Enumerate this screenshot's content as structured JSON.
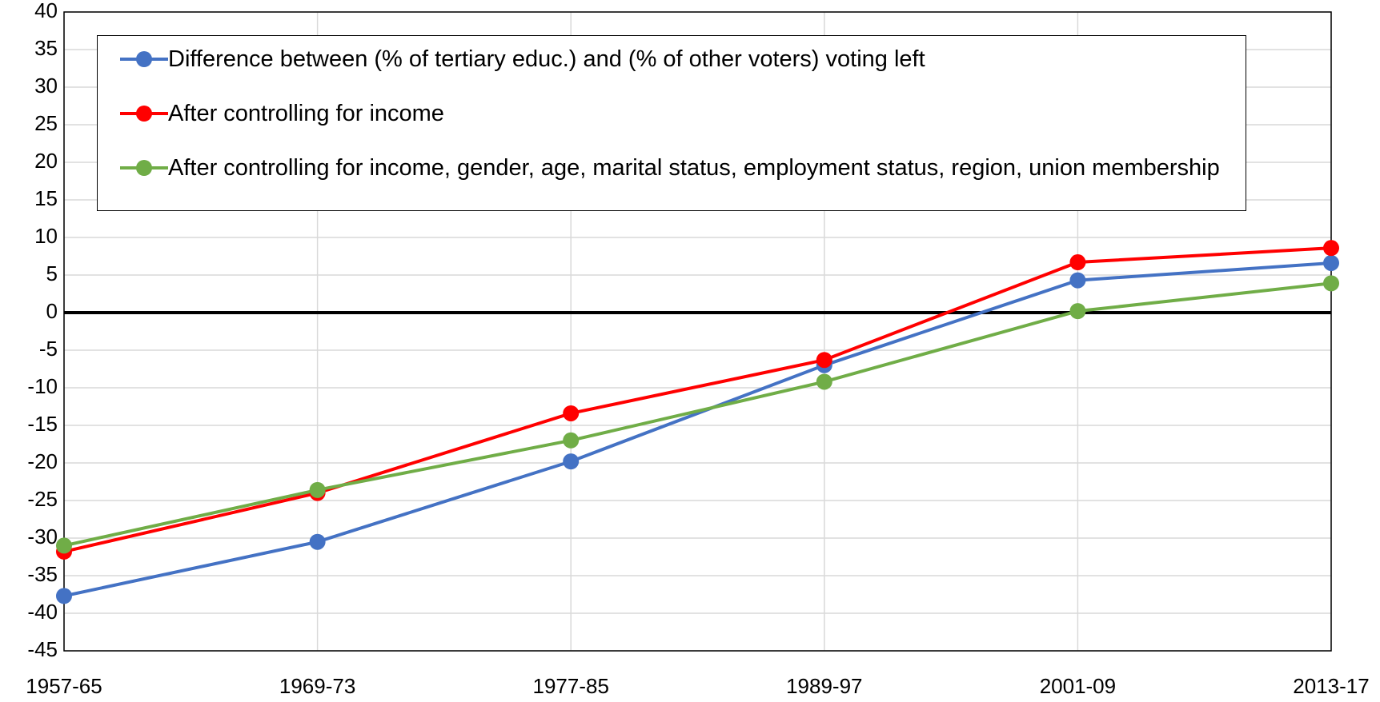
{
  "chart_data": {
    "type": "line",
    "categories": [
      "1957-65",
      "1969-73",
      "1977-85",
      "1989-97",
      "2001-09",
      "2013-17"
    ],
    "series": [
      {
        "name": "Difference between (% of tertiary educ.) and (% of other voters) voting left",
        "color": "#4472c4",
        "values": [
          -37.7,
          -30.5,
          -19.8,
          -7,
          4.3,
          6.6
        ]
      },
      {
        "name": "After controlling for income",
        "color": "#ff0000",
        "values": [
          -31.8,
          -24,
          -13.4,
          -6.3,
          6.7,
          8.6
        ]
      },
      {
        "name": "After controlling for income, gender, age, marital status, employment status, region, union membership",
        "color": "#70ad47",
        "values": [
          -31,
          -23.6,
          -17,
          -9.2,
          0.2,
          3.9
        ]
      }
    ],
    "ylim": [
      -45,
      40
    ],
    "yticks": [
      -45,
      -40,
      -35,
      -30,
      -25,
      -20,
      -15,
      -10,
      -5,
      0,
      5,
      10,
      15,
      20,
      25,
      30,
      35,
      40
    ],
    "grid": true,
    "legend": "top-left"
  }
}
